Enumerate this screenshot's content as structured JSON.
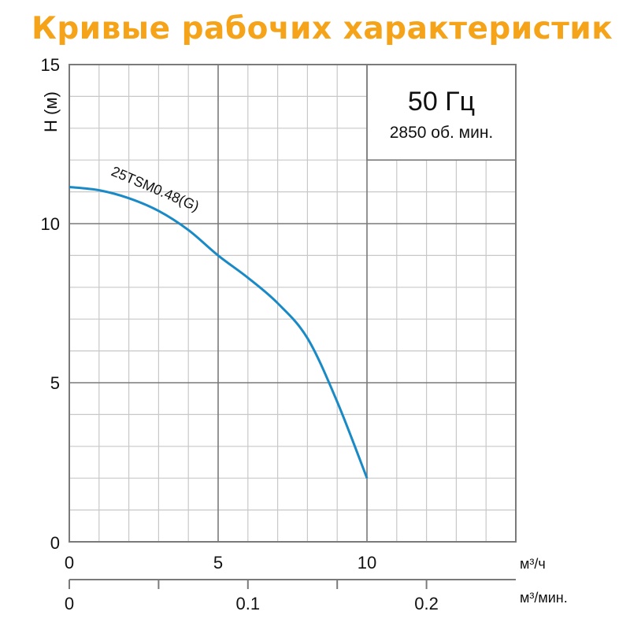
{
  "title": "Кривые рабочих характеристик",
  "chart_data": {
    "type": "line",
    "title": "Кривые рабочих характеристик",
    "ylabel": "H (м)",
    "xlabel": "м³/ч",
    "xlabel_secondary": "м³/мин.",
    "xlim": [
      0,
      15
    ],
    "ylim": [
      0,
      15
    ],
    "xticks": [
      0,
      5,
      10
    ],
    "yticks": [
      0,
      5,
      10,
      15
    ],
    "secondary_xticks": [
      "0",
      "0.1",
      "0.2"
    ],
    "secondary_xlim": [
      0,
      0.25
    ],
    "grid": true,
    "legend_box": {
      "frequency": "50 Гц",
      "speed": "2850 об. мин."
    },
    "series": [
      {
        "name": "25TSM0.48(G)",
        "color": "#1a8ac6",
        "x": [
          0,
          1,
          2,
          3,
          4,
          5,
          6,
          7,
          8,
          9,
          10
        ],
        "y": [
          11.15,
          11.05,
          10.8,
          10.4,
          9.8,
          9.0,
          8.3,
          7.5,
          6.4,
          4.4,
          2.0
        ]
      }
    ]
  }
}
